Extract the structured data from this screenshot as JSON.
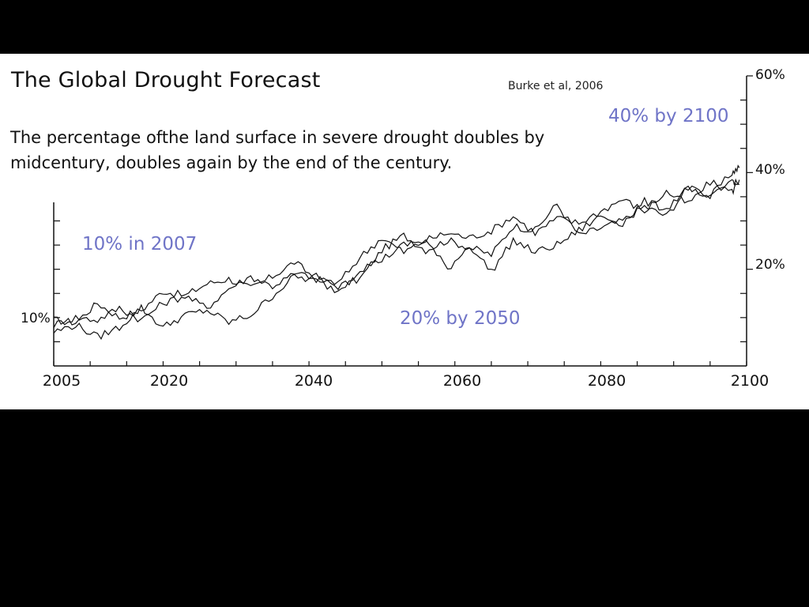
{
  "slide": {
    "title": "The Global Drought Forecast",
    "source": "Burke et al, 2006",
    "subtitle": "The percentage ofthe land surface in severe drought doubles by midcentury, doubles again by the end of the century.",
    "annotations": {
      "a2007": "10% in 2007",
      "a2050": "20% by 2050",
      "a2100": "40% by 2100"
    },
    "colors": {
      "annotation": "#6f74c7",
      "line": "#111111",
      "background": "#ffffff"
    }
  },
  "chart_data": {
    "type": "line",
    "title": "",
    "xlabel": "",
    "ylabel": "",
    "xlim": [
      2005,
      2100
    ],
    "ylim": [
      0,
      60
    ],
    "x_ticks": [
      "2005",
      "2020",
      "2040",
      "2060",
      "2080",
      "2100"
    ],
    "y_ticks_left": [
      "10%"
    ],
    "y_ticks_right": [
      "20%",
      "40%",
      "60%"
    ],
    "grid": false,
    "series": [
      {
        "x": [
          2005,
          2008,
          2011,
          2014,
          2017,
          2020,
          2023,
          2026,
          2029,
          2032,
          2035,
          2038,
          2041,
          2044,
          2047,
          2050,
          2053,
          2056,
          2059,
          2062,
          2065,
          2068,
          2071,
          2074,
          2077,
          2080,
          2083,
          2086,
          2089,
          2092,
          2095,
          2098,
          2099
        ],
        "y": [
          9.5,
          9.0,
          13.0,
          10.0,
          11.5,
          15.5,
          14.5,
          17.0,
          18.0,
          16.0,
          18.5,
          21.5,
          18.0,
          16.5,
          18.0,
          24.0,
          27.0,
          24.0,
          26.0,
          24.5,
          23.0,
          29.0,
          28.0,
          33.5,
          27.0,
          28.5,
          30.0,
          33.0,
          31.0,
          37.0,
          35.0,
          40.0,
          41.0
        ]
      },
      {
        "x": [
          2005,
          2008,
          2011,
          2014,
          2017,
          2020,
          2023,
          2026,
          2029,
          2032,
          2035,
          2038,
          2041,
          2044,
          2047,
          2050,
          2053,
          2056,
          2059,
          2062,
          2065,
          2068,
          2071,
          2074,
          2077,
          2080,
          2083,
          2086,
          2089,
          2092,
          2095,
          2098,
          2099
        ],
        "y": [
          8.5,
          10.0,
          9.5,
          12.0,
          9.5,
          13.0,
          14.5,
          12.0,
          16.0,
          18.5,
          16.5,
          19.0,
          18.5,
          17.0,
          22.5,
          26.5,
          23.5,
          26.0,
          27.5,
          26.5,
          28.0,
          31.0,
          27.5,
          30.5,
          29.5,
          32.0,
          34.5,
          32.0,
          36.0,
          33.5,
          38.0,
          36.0,
          38.5
        ]
      },
      {
        "x": [
          2005,
          2008,
          2011,
          2014,
          2017,
          2020,
          2023,
          2026,
          2029,
          2032,
          2035,
          2038,
          2041,
          2044,
          2047,
          2050,
          2053,
          2056,
          2059,
          2062,
          2065,
          2068,
          2071,
          2074,
          2077,
          2080,
          2083,
          2086,
          2089,
          2092,
          2095,
          2098,
          2099
        ],
        "y": [
          7.0,
          8.5,
          6.0,
          8.0,
          12.0,
          8.0,
          10.5,
          11.5,
          9.0,
          10.5,
          14.5,
          18.5,
          17.5,
          15.5,
          20.0,
          22.0,
          25.0,
          26.0,
          20.0,
          25.0,
          19.5,
          26.0,
          23.5,
          25.0,
          28.0,
          31.0,
          29.5,
          34.0,
          32.5,
          37.0,
          34.5,
          38.5,
          37.5
        ]
      }
    ]
  }
}
